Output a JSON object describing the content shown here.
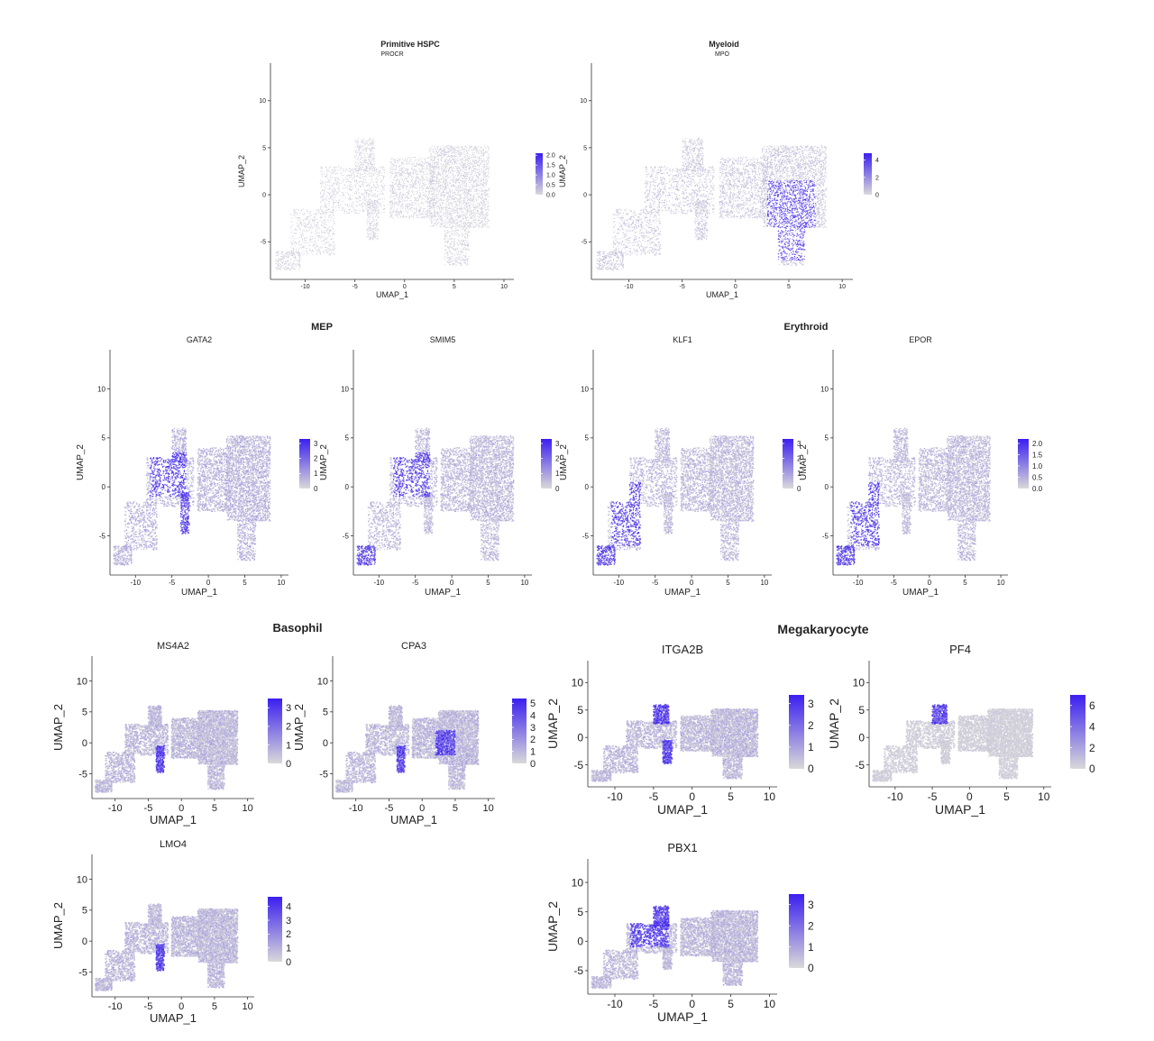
{
  "figure": {
    "groups": [
      {
        "id": "hspc",
        "title": "Primitive HSPC"
      },
      {
        "id": "myeloid",
        "title": "Myeloid"
      },
      {
        "id": "mep",
        "title": "MEP"
      },
      {
        "id": "erythroid",
        "title": "Erythroid"
      },
      {
        "id": "basophil",
        "title": "Basophil"
      },
      {
        "id": "megakaryocyte",
        "title": "Megakaryocyte"
      }
    ]
  },
  "colors": {
    "low": "#d9d9d9",
    "high": "#3b1ff0",
    "axis": "#333333"
  },
  "chart_data": [
    {
      "id": "procr",
      "type": "scatter",
      "title": "PROCR",
      "group": "Primitive HSPC",
      "xlabel": "UMAP_1",
      "ylabel": "UMAP_2",
      "xlim": [
        -13.5,
        11
      ],
      "ylim": [
        -9,
        14
      ],
      "xticks": [
        -10,
        -5,
        0,
        5,
        10
      ],
      "yticks": [
        -5,
        0,
        5,
        10
      ],
      "legend": {
        "ticks": [
          "2.0",
          "1.5",
          "1.0",
          "0.5",
          "0.0"
        ],
        "max": 2.1
      },
      "hotspots": [],
      "base_level": 0.12
    },
    {
      "id": "mpo",
      "type": "scatter",
      "title": "MPO",
      "group": "Myeloid",
      "xlabel": "UMAP_1",
      "ylabel": "UMAP_2",
      "xlim": [
        -13.5,
        11
      ],
      "ylim": [
        -9,
        14
      ],
      "xticks": [
        -10,
        -5,
        0,
        5,
        10
      ],
      "yticks": [
        -5,
        0,
        5,
        10
      ],
      "legend": {
        "ticks": [
          "4",
          "2",
          "0"
        ],
        "max": 4.8
      },
      "hotspots": [
        "myeloid_tail"
      ],
      "base_level": 0.2
    },
    {
      "id": "gata2",
      "type": "scatter",
      "title": "GATA2",
      "group": "MEP",
      "xlabel": "UMAP_1",
      "ylabel": "UMAP_2",
      "xlim": [
        -13.5,
        11
      ],
      "ylim": [
        -9,
        14
      ],
      "xticks": [
        -10,
        -5,
        0,
        5,
        10
      ],
      "yticks": [
        -5,
        0,
        5,
        10
      ],
      "legend": {
        "ticks": [
          "3",
          "2",
          "1",
          "0"
        ],
        "max": 3.3
      },
      "hotspots": [
        "loop",
        "baso_island"
      ],
      "base_level": 0.35
    },
    {
      "id": "smim5",
      "type": "scatter",
      "title": "SMIM5",
      "group": "MEP",
      "xlabel": "UMAP_1",
      "ylabel": "UMAP_2",
      "xlim": [
        -13.5,
        11
      ],
      "ylim": [
        -9,
        14
      ],
      "xticks": [
        -10,
        -5,
        0,
        5,
        10
      ],
      "yticks": [
        -5,
        0,
        5,
        10
      ],
      "legend": {
        "ticks": [
          "3",
          "2",
          "1",
          "0"
        ],
        "max": 3.3
      },
      "hotspots": [
        "loop",
        "ery_tip"
      ],
      "base_level": 0.3
    },
    {
      "id": "klf1",
      "type": "scatter",
      "title": "KLF1",
      "group": "Erythroid",
      "xlabel": "UMAP_1",
      "ylabel": "UMAP_2",
      "xlim": [
        -13.5,
        11
      ],
      "ylim": [
        -9,
        14
      ],
      "xticks": [
        -10,
        -5,
        0,
        5,
        10
      ],
      "yticks": [
        -5,
        0,
        5,
        10
      ],
      "legend": {
        "ticks": [
          "3",
          "2",
          "1",
          "0"
        ],
        "max": 3.3
      },
      "hotspots": [
        "ery_arm",
        "ery_tip"
      ],
      "base_level": 0.3
    },
    {
      "id": "epor",
      "type": "scatter",
      "title": "EPOR",
      "group": "Erythroid",
      "xlabel": "UMAP_1",
      "ylabel": "UMAP_2",
      "xlim": [
        -13.5,
        11
      ],
      "ylim": [
        -9,
        14
      ],
      "xticks": [
        -10,
        -5,
        0,
        5,
        10
      ],
      "yticks": [
        -5,
        0,
        5,
        10
      ],
      "legend": {
        "ticks": [
          "2.0",
          "1.5",
          "1.0",
          "0.5",
          "0.0"
        ],
        "max": 2.2
      },
      "hotspots": [
        "ery_arm",
        "ery_tip"
      ],
      "base_level": 0.3
    },
    {
      "id": "ms4a2",
      "type": "scatter",
      "title": "MS4A2",
      "group": "Basophil",
      "xlabel": "UMAP_1",
      "ylabel": "UMAP_2",
      "xlim": [
        -13.5,
        11
      ],
      "ylim": [
        -9,
        14
      ],
      "xticks": [
        -10,
        -5,
        0,
        5,
        10
      ],
      "yticks": [
        -5,
        0,
        5,
        10
      ],
      "legend": {
        "ticks": [
          "3",
          "2",
          "1",
          "0"
        ],
        "max": 3.5
      },
      "hotspots": [
        "baso_island"
      ],
      "base_level": 0.3
    },
    {
      "id": "cpa3",
      "type": "scatter",
      "title": "CPA3",
      "group": "Basophil",
      "xlabel": "UMAP_1",
      "ylabel": "UMAP_2",
      "xlim": [
        -13.5,
        11
      ],
      "ylim": [
        -9,
        14
      ],
      "xticks": [
        -10,
        -5,
        0,
        5,
        10
      ],
      "yticks": [
        -5,
        0,
        5,
        10
      ],
      "legend": {
        "ticks": [
          "5",
          "4",
          "3",
          "2",
          "1",
          "0"
        ],
        "max": 5.4
      },
      "hotspots": [
        "baso_island",
        "myeloid_mid"
      ],
      "base_level": 0.3
    },
    {
      "id": "itga2b",
      "type": "scatter",
      "title": "ITGA2B",
      "group": "Megakaryocyte",
      "xlabel": "UMAP_1",
      "ylabel": "UMAP_2",
      "xlim": [
        -13.5,
        11
      ],
      "ylim": [
        -9,
        14
      ],
      "xticks": [
        -10,
        -5,
        0,
        5,
        10
      ],
      "yticks": [
        -5,
        0,
        5,
        10
      ],
      "legend": {
        "ticks": [
          "3",
          "2",
          "1",
          "0"
        ],
        "max": 3.4
      },
      "hotspots": [
        "mk_arm",
        "baso_island"
      ],
      "base_level": 0.3
    },
    {
      "id": "pf4",
      "type": "scatter",
      "title": "PF4",
      "group": "Megakaryocyte",
      "xlabel": "UMAP_1",
      "ylabel": "UMAP_2",
      "xlim": [
        -13.5,
        11
      ],
      "ylim": [
        -9,
        14
      ],
      "xticks": [
        -10,
        -5,
        0,
        5,
        10
      ],
      "yticks": [
        -5,
        0,
        5,
        10
      ],
      "legend": {
        "ticks": [
          "6",
          "4",
          "2",
          "0"
        ],
        "max": 7
      },
      "hotspots": [
        "mk_arm"
      ],
      "base_level": 0.1
    },
    {
      "id": "lmo4",
      "type": "scatter",
      "title": "LMO4",
      "group": "Basophil",
      "xlabel": "UMAP_1",
      "ylabel": "UMAP_2",
      "xlim": [
        -13.5,
        11
      ],
      "ylim": [
        -9,
        14
      ],
      "xticks": [
        -10,
        -5,
        0,
        5,
        10
      ],
      "yticks": [
        -5,
        0,
        5,
        10
      ],
      "legend": {
        "ticks": [
          "4",
          "3",
          "2",
          "1",
          "0"
        ],
        "max": 4.7
      },
      "hotspots": [
        "baso_island"
      ],
      "base_level": 0.3
    },
    {
      "id": "pbx1",
      "type": "scatter",
      "title": "PBX1",
      "group": "Megakaryocyte",
      "xlabel": "UMAP_1",
      "ylabel": "UMAP_2",
      "xlim": [
        -13.5,
        11
      ],
      "ylim": [
        -9,
        14
      ],
      "xticks": [
        -10,
        -5,
        0,
        5,
        10
      ],
      "yticks": [
        -5,
        0,
        5,
        10
      ],
      "legend": {
        "ticks": [
          "3",
          "2",
          "1",
          "0"
        ],
        "max": 3.5
      },
      "hotspots": [
        "mk_arm",
        "loop"
      ],
      "base_level": 0.3
    }
  ]
}
